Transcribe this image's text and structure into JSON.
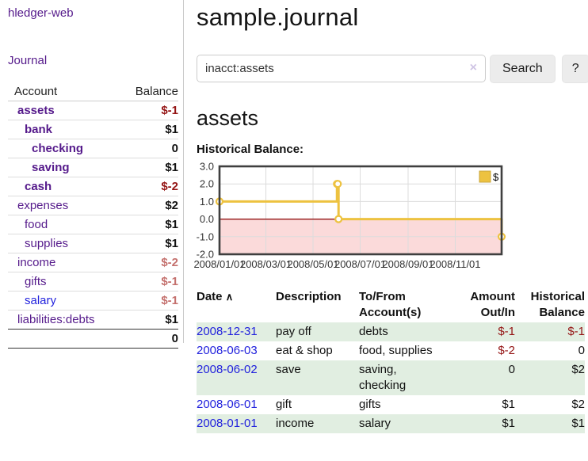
{
  "app": {
    "brand": "hledger-web"
  },
  "header": {
    "title": "sample.journal"
  },
  "sidebar": {
    "nav": [
      {
        "label": "Journal"
      }
    ],
    "accounts_table": {
      "headers": [
        "Account",
        "Balance"
      ],
      "rows": [
        {
          "name": "assets",
          "indent": 1,
          "bold": true,
          "balance": "$-1"
        },
        {
          "name": "bank",
          "indent": 2,
          "bold": true,
          "balance": "$1"
        },
        {
          "name": "checking",
          "indent": 3,
          "bold": true,
          "balance": "0"
        },
        {
          "name": "saving",
          "indent": 3,
          "bold": true,
          "balance": "$1"
        },
        {
          "name": "cash",
          "indent": 2,
          "bold": true,
          "balance": "$-2"
        },
        {
          "name": "expenses",
          "indent": 1,
          "bold": false,
          "balance": "$2"
        },
        {
          "name": "food",
          "indent": 2,
          "bold": false,
          "balance": "$1"
        },
        {
          "name": "supplies",
          "indent": 2,
          "bold": false,
          "balance": "$1"
        },
        {
          "name": "income",
          "indent": 1,
          "bold": false,
          "balance": "$-2"
        },
        {
          "name": "gifts",
          "indent": 2,
          "bold": false,
          "balance": "$-1"
        },
        {
          "name": "salary",
          "indent": 2,
          "bold": false,
          "balance": "$-1",
          "unvisited": true
        },
        {
          "name": "liabilities:debts",
          "indent": 1,
          "bold": false,
          "balance": "$1"
        }
      ],
      "total": "0"
    }
  },
  "search": {
    "value": "inacct:assets",
    "clear_icon": "×",
    "button": "Search",
    "help_button": "?"
  },
  "account_page": {
    "heading": "assets",
    "chart_label": "Historical Balance:"
  },
  "chart_data": {
    "type": "line",
    "title": "Historical Balance",
    "legend": [
      {
        "label": "$",
        "color": "#edc240"
      }
    ],
    "legend_position": "top-right",
    "grid": true,
    "x_unit": "days since 2008-01-01",
    "x_domain": [
      0,
      365
    ],
    "ylim": [
      -2.0,
      3.0
    ],
    "yticks": [
      3.0,
      2.0,
      1.0,
      0.0,
      -1.0,
      -2.0
    ],
    "xticks": [
      {
        "pos": 0,
        "label": "2008/01/01"
      },
      {
        "pos": 60,
        "label": "2008/03/01"
      },
      {
        "pos": 121,
        "label": "2008/05/01"
      },
      {
        "pos": 182,
        "label": "2008/07/01"
      },
      {
        "pos": 244,
        "label": "2008/09/01"
      },
      {
        "pos": 305,
        "label": "2008/11/01"
      }
    ],
    "series": [
      {
        "name": "$",
        "color": "#edc240",
        "step": true,
        "points": [
          {
            "x": 0,
            "date": "2008-01-01",
            "y": 1
          },
          {
            "x": 152,
            "date": "2008-06-01",
            "y": 2
          },
          {
            "x": 153,
            "date": "2008-06-02",
            "y": 2
          },
          {
            "x": 154,
            "date": "2008-06-03",
            "y": 0
          },
          {
            "x": 365,
            "date": "2008-12-31",
            "y": -1
          }
        ]
      }
    ],
    "negative_region": {
      "below": 0,
      "fill": "#fbdada",
      "line_color": "#8b0000"
    }
  },
  "register_table": {
    "sort_icon": "∧",
    "headers": [
      "Date",
      "Description",
      "To/From Account(s)",
      "Amount Out/In",
      "Historical Balance"
    ],
    "rows": [
      {
        "date": "2008-12-31",
        "description": "pay off",
        "accounts": "debts",
        "amount": "$-1",
        "balance": "$-1"
      },
      {
        "date": "2008-06-03",
        "description": "eat & shop",
        "accounts": "food, supplies",
        "amount": "$-2",
        "balance": "0"
      },
      {
        "date": "2008-06-02",
        "description": "save",
        "accounts": "saving, checking",
        "amount": "0",
        "balance": "$2"
      },
      {
        "date": "2008-06-01",
        "description": "gift",
        "accounts": "gifts",
        "amount": "$1",
        "balance": "$2"
      },
      {
        "date": "2008-01-01",
        "description": "income",
        "accounts": "salary",
        "amount": "$1",
        "balance": "$1"
      }
    ]
  },
  "colors": {
    "link_visited": "#551a8b",
    "link_unvisited": "#2222dd",
    "negative_strong": "#941414",
    "negative_soft": "#c4706d",
    "row_stripe_green": "#e1eee1",
    "series_yellow": "#edc240",
    "negative_region_fill": "#fbdada",
    "zero_line": "#8b0000",
    "chart_border": "#3f3f3f"
  }
}
